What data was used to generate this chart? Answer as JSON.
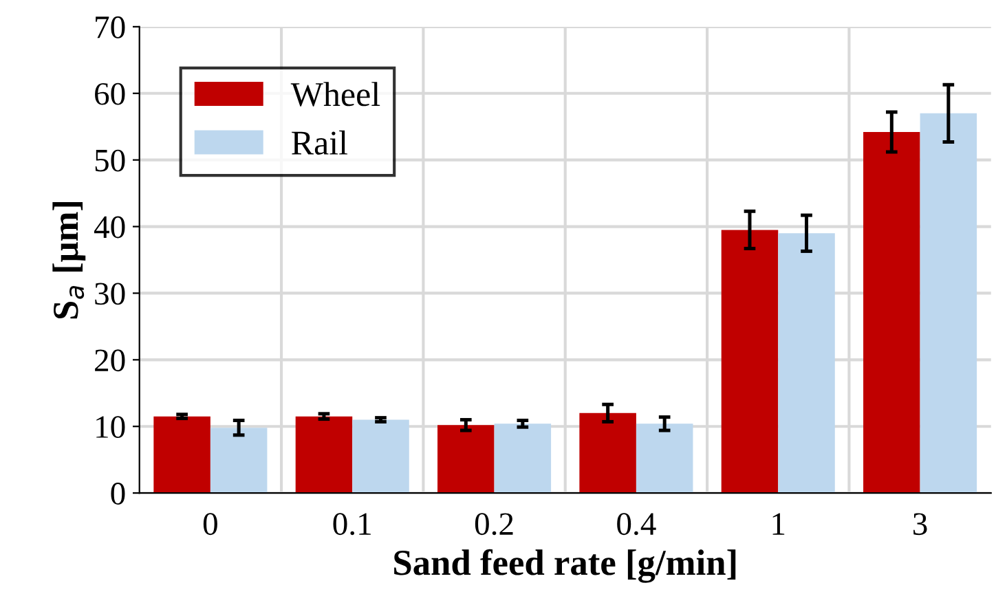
{
  "chart_data": {
    "type": "bar",
    "xlabel": "Sand feed rate [g/min]",
    "ylabel": "S$_{a}$ [μm]",
    "categories": [
      "0",
      "0.1",
      "0.2",
      "0.4",
      "1",
      "3"
    ],
    "series": [
      {
        "name": "Wheel",
        "color": "#c00000",
        "values": [
          11.5,
          11.5,
          10.2,
          12,
          39.5,
          54.2
        ],
        "errors": [
          0.3,
          0.4,
          0.8,
          1.3,
          2.8,
          3
        ]
      },
      {
        "name": "Rail",
        "color": "#bdd7ee",
        "values": [
          9.8,
          11,
          10.4,
          10.4,
          39,
          57
        ],
        "errors": [
          1.1,
          0.3,
          0.5,
          1.0,
          2.7,
          4.3
        ]
      }
    ],
    "ylim": [
      0,
      70
    ],
    "yticks": [
      0,
      10,
      20,
      30,
      40,
      50,
      60,
      70
    ],
    "grid": true,
    "legend": "top left"
  }
}
